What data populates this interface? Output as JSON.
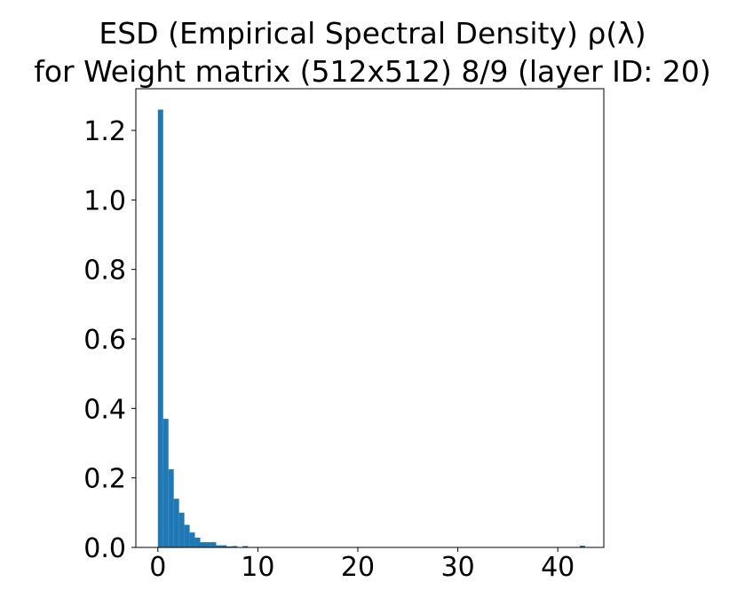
{
  "chart_data": {
    "type": "bar",
    "title_line1": "ESD (Empirical Spectral Density) ρ(λ)",
    "title_line2": "for Weight matrix (512x512) 8/9 (layer ID: 20)",
    "xlabel": "",
    "ylabel": "",
    "xlim": [
      -2.2,
      44.6
    ],
    "ylim": [
      0,
      1.32
    ],
    "xticks": [
      0,
      10,
      20,
      30,
      40
    ],
    "yticks": [
      0.0,
      0.2,
      0.4,
      0.6,
      0.8,
      1.0,
      1.2
    ],
    "bar_color": "#1f77b4",
    "bin_width": 0.53,
    "bins": [
      {
        "x0": 0.0,
        "value": 1.26
      },
      {
        "x0": 0.53,
        "value": 0.37
      },
      {
        "x0": 1.06,
        "value": 0.225
      },
      {
        "x0": 1.59,
        "value": 0.14
      },
      {
        "x0": 2.12,
        "value": 0.1
      },
      {
        "x0": 2.65,
        "value": 0.065
      },
      {
        "x0": 3.18,
        "value": 0.043
      },
      {
        "x0": 3.71,
        "value": 0.028
      },
      {
        "x0": 4.24,
        "value": 0.015
      },
      {
        "x0": 4.77,
        "value": 0.015
      },
      {
        "x0": 5.3,
        "value": 0.015
      },
      {
        "x0": 5.83,
        "value": 0.006
      },
      {
        "x0": 6.36,
        "value": 0.006
      },
      {
        "x0": 6.89,
        "value": 0.003
      },
      {
        "x0": 7.42,
        "value": 0.004
      },
      {
        "x0": 8.48,
        "value": 0.004
      },
      {
        "x0": 42.2,
        "value": 0.005
      }
    ]
  }
}
